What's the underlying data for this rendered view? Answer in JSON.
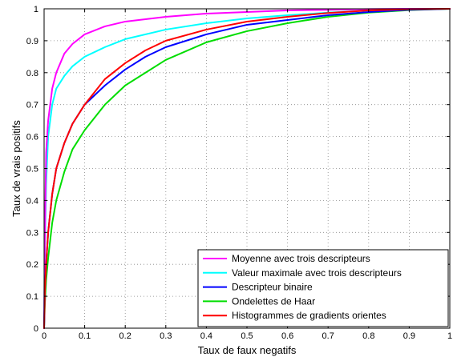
{
  "chart_data": {
    "type": "line",
    "title": "",
    "xlabel": "Taux de faux negatifs",
    "ylabel": "Taux de vrais positifs",
    "xlim": [
      0,
      1
    ],
    "ylim": [
      0,
      1
    ],
    "xticks": [
      "0",
      "0.1",
      "0.2",
      "0.3",
      "0.4",
      "0.5",
      "0.6",
      "0.7",
      "0.8",
      "0.9",
      "1"
    ],
    "yticks": [
      "0",
      "0.1",
      "0.2",
      "0.3",
      "0.4",
      "0.5",
      "0.6",
      "0.7",
      "0.8",
      "0.9",
      "1"
    ],
    "grid": true,
    "legend_position": "bottom-right",
    "series": [
      {
        "name": "Moyenne avec trois descripteurs",
        "color": "#ff00ff",
        "x": [
          0,
          0.002,
          0.005,
          0.01,
          0.02,
          0.03,
          0.05,
          0.07,
          0.1,
          0.15,
          0.2,
          0.3,
          0.4,
          0.5,
          0.6,
          0.7,
          0.8,
          0.9,
          1.0
        ],
        "y": [
          0,
          0.3,
          0.55,
          0.65,
          0.75,
          0.8,
          0.86,
          0.89,
          0.92,
          0.945,
          0.96,
          0.975,
          0.985,
          0.99,
          0.995,
          0.997,
          0.999,
          1.0,
          1.0
        ]
      },
      {
        "name": "Valeur maximale avec trois descripteurs",
        "color": "#00ffff",
        "x": [
          0,
          0.002,
          0.005,
          0.01,
          0.02,
          0.03,
          0.05,
          0.07,
          0.1,
          0.15,
          0.2,
          0.3,
          0.4,
          0.5,
          0.6,
          0.7,
          0.8,
          0.9,
          1.0
        ],
        "y": [
          0,
          0.25,
          0.45,
          0.6,
          0.7,
          0.75,
          0.79,
          0.82,
          0.85,
          0.88,
          0.905,
          0.935,
          0.955,
          0.97,
          0.98,
          0.988,
          0.995,
          0.999,
          1.0
        ]
      },
      {
        "name": "Descripteur binaire",
        "color": "#0000ff",
        "x": [
          0,
          0.002,
          0.005,
          0.01,
          0.02,
          0.03,
          0.05,
          0.07,
          0.1,
          0.15,
          0.2,
          0.25,
          0.3,
          0.4,
          0.5,
          0.6,
          0.7,
          0.8,
          0.9,
          1.0
        ],
        "y": [
          0,
          0.12,
          0.2,
          0.3,
          0.42,
          0.5,
          0.58,
          0.64,
          0.7,
          0.76,
          0.81,
          0.85,
          0.88,
          0.92,
          0.95,
          0.965,
          0.98,
          0.99,
          0.997,
          1.0
        ]
      },
      {
        "name": "Ondelettes de Haar",
        "color": "#00dd00",
        "x": [
          0,
          0.002,
          0.005,
          0.01,
          0.02,
          0.03,
          0.05,
          0.07,
          0.1,
          0.15,
          0.2,
          0.3,
          0.4,
          0.5,
          0.6,
          0.7,
          0.8,
          0.9,
          1.0
        ],
        "y": [
          0,
          0.08,
          0.15,
          0.22,
          0.33,
          0.4,
          0.49,
          0.56,
          0.62,
          0.7,
          0.76,
          0.84,
          0.895,
          0.93,
          0.955,
          0.975,
          0.988,
          0.996,
          1.0
        ]
      },
      {
        "name": "Histogrammes de gradients orientes",
        "color": "#ff0000",
        "x": [
          0,
          0.002,
          0.005,
          0.01,
          0.02,
          0.03,
          0.05,
          0.07,
          0.1,
          0.15,
          0.2,
          0.25,
          0.3,
          0.4,
          0.5,
          0.6,
          0.7,
          0.8,
          0.9,
          1.0
        ],
        "y": [
          0,
          0.12,
          0.2,
          0.3,
          0.42,
          0.5,
          0.58,
          0.64,
          0.7,
          0.78,
          0.83,
          0.87,
          0.9,
          0.935,
          0.96,
          0.975,
          0.987,
          0.995,
          0.999,
          1.0
        ]
      }
    ]
  }
}
